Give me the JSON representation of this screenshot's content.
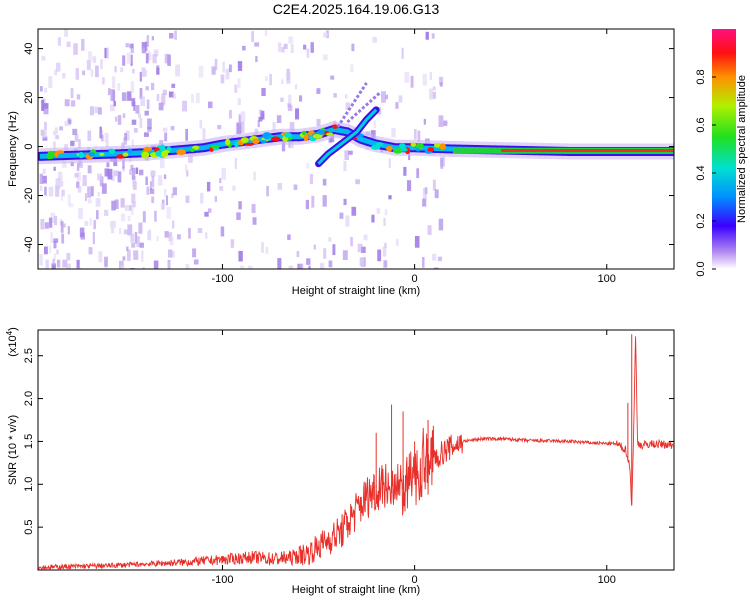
{
  "title": "C2E4.2025.164.19.06.G13",
  "colors": {
    "snr_line": "#e8302a",
    "tone_band": "#e8302a",
    "axis": "#000000"
  },
  "chart_data": [
    {
      "type": "heatmap",
      "title": "C2E4.2025.164.19.06.G13",
      "xlabel": "Height of straight line (km)",
      "ylabel": "Frequency (Hz)",
      "xlim": [
        -196,
        135
      ],
      "ylim": [
        -50,
        48
      ],
      "xticks": [
        "-100",
        "0",
        "100"
      ],
      "yticks": [
        "40",
        "20",
        "0",
        "-20",
        "-40"
      ],
      "ridge_x": [
        -195,
        -175,
        -155,
        -140,
        -125,
        -110,
        -100,
        -90,
        -80,
        -70,
        -60,
        -50,
        -42,
        -35,
        -28,
        -20,
        -10,
        0,
        20,
        50,
        80,
        100,
        110,
        135
      ],
      "ridge_freq": [
        -4,
        -3.5,
        -3,
        -2.5,
        -1.5,
        -0.5,
        1,
        2,
        3,
        4,
        4,
        5,
        7,
        6,
        3,
        1,
        -0.5,
        -0.5,
        -1,
        -1.5,
        -2,
        -2,
        -2,
        -2
      ],
      "colorbar": {
        "label": "Normalized spectral amplitude",
        "range": [
          0.0,
          1.0
        ],
        "ticks": [
          "0.0",
          "0.2",
          "0.4",
          "0.6",
          "0.8"
        ],
        "scale": "rainbow"
      }
    },
    {
      "type": "line",
      "xlabel": "Height of straight line (km)",
      "ylabel": "SNR (10 * v/v)",
      "multiplier": "(x10",
      "multiplier_exp": "4",
      "multiplier_close": ")",
      "xlim": [
        -196,
        135
      ],
      "ylim": [
        0,
        2.8
      ],
      "xticks": [
        "-100",
        "0",
        "100"
      ],
      "yticks": [
        "0.5",
        "1.0",
        "1.5",
        "2.0",
        "2.5"
      ],
      "series": [
        {
          "x": [
            -196,
            -180,
            -160,
            -140,
            -120,
            -100,
            -85,
            -75,
            -65,
            -55,
            -45,
            -38,
            -30,
            -25,
            -18,
            -12,
            -5,
            0,
            5,
            10,
            18,
            25,
            35,
            45,
            60,
            80,
            95,
            105,
            110,
            112,
            113,
            114,
            115,
            116,
            118,
            122,
            135
          ],
          "y": [
            0.03,
            0.04,
            0.05,
            0.07,
            0.09,
            0.12,
            0.15,
            0.13,
            0.14,
            0.2,
            0.35,
            0.45,
            0.7,
            0.85,
            1.0,
            0.9,
            0.95,
            1.1,
            1.2,
            1.3,
            1.42,
            1.5,
            1.53,
            1.53,
            1.51,
            1.5,
            1.48,
            1.47,
            1.4,
            1.2,
            0.75,
            1.6,
            2.75,
            1.5,
            1.45,
            1.47,
            1.46
          ],
          "spikes": [
            {
              "x": -12,
              "y": 1.93
            },
            {
              "x": -6,
              "y": 1.85
            },
            {
              "x": -20,
              "y": 1.6
            },
            {
              "x": 7,
              "y": 1.75
            },
            {
              "x": 0,
              "y": 1.5
            },
            {
              "x": 113,
              "y": 2.75
            },
            {
              "x": 111,
              "y": 1.95
            }
          ]
        }
      ]
    }
  ]
}
